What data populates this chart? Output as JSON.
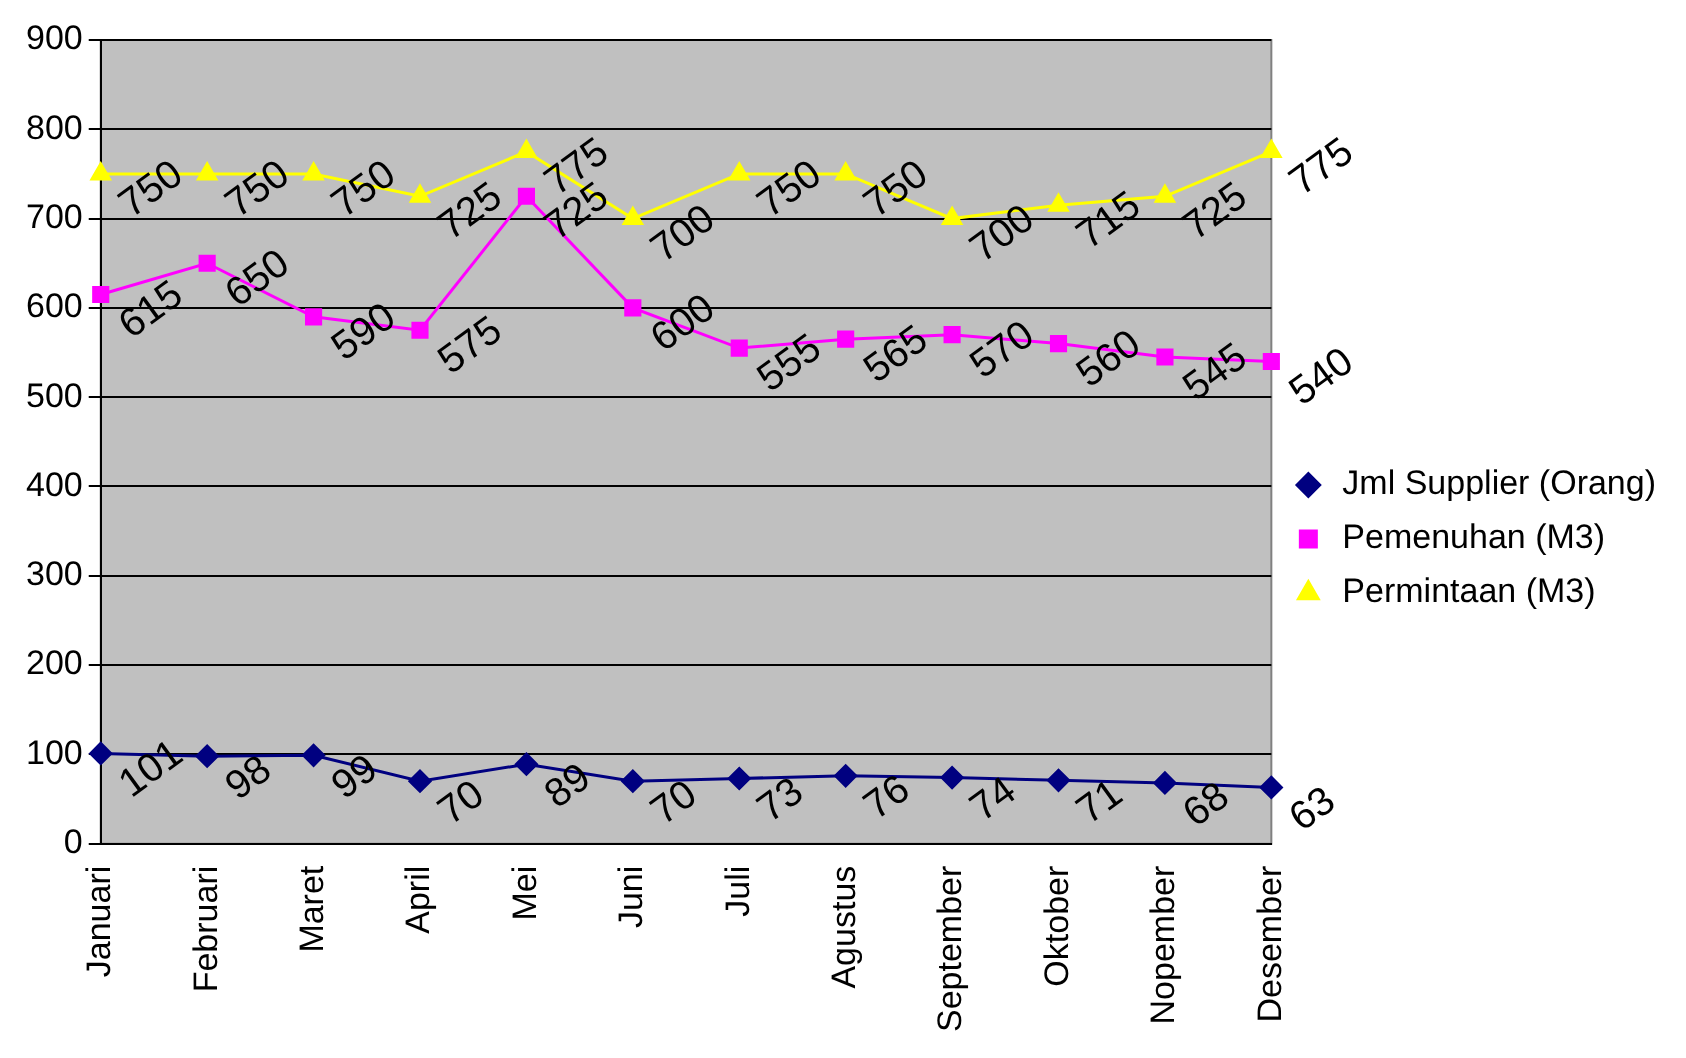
{
  "chart_data": {
    "type": "line",
    "categories": [
      "Januari",
      "Februari",
      "Maret",
      "April",
      "Mei",
      "Juni",
      "Juli",
      "Agustus",
      "September",
      "Oktober",
      "Nopember",
      "Desember"
    ],
    "series": [
      {
        "name": "Jml Supplier (Orang)",
        "color": "#000080",
        "marker": "diamond",
        "values": [
          101,
          98,
          99,
          70,
          89,
          70,
          73,
          76,
          74,
          71,
          68,
          63
        ]
      },
      {
        "name": "Pemenuhan (M3)",
        "color": "#ff00ff",
        "marker": "square",
        "values": [
          615,
          650,
          590,
          575,
          725,
          600,
          555,
          565,
          570,
          560,
          545,
          540
        ]
      },
      {
        "name": "Permintaan (M3)",
        "color": "#ffff00",
        "marker": "triangle",
        "values": [
          750,
          750,
          750,
          725,
          775,
          700,
          750,
          750,
          700,
          715,
          725,
          775
        ]
      }
    ],
    "ylim": [
      0,
      900
    ],
    "yticks": [
      0,
      100,
      200,
      300,
      400,
      500,
      600,
      700,
      800,
      900
    ],
    "grid": "y",
    "legend": "right",
    "data_labels": true
  }
}
